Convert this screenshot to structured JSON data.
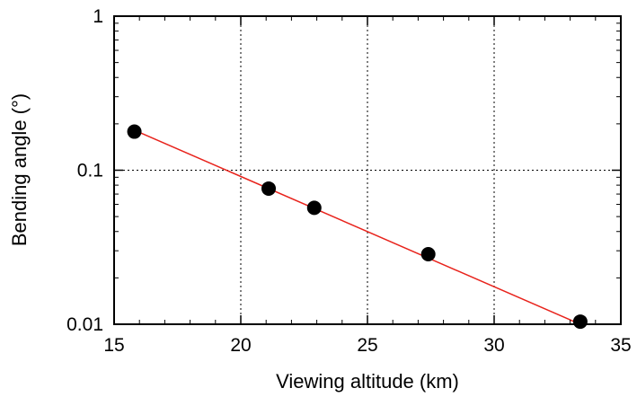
{
  "chart_data": {
    "type": "scatter",
    "xlabel": "Viewing altitude (km)",
    "ylabel": "Bending angle (°)",
    "xlim": [
      15,
      35
    ],
    "ylim": [
      0.01,
      1
    ],
    "yscale": "log",
    "grid": true,
    "x_ticks": [
      15,
      20,
      25,
      30,
      35
    ],
    "x_tick_labels": [
      "15",
      "20",
      "25",
      "30",
      "35"
    ],
    "y_ticks": [
      0.01,
      0.1,
      1
    ],
    "y_tick_labels": [
      "0.01",
      "0.1",
      "1"
    ],
    "points": [
      {
        "x": 15.8,
        "y": 0.178
      },
      {
        "x": 21.1,
        "y": 0.076
      },
      {
        "x": 22.9,
        "y": 0.057
      },
      {
        "x": 27.4,
        "y": 0.0285
      },
      {
        "x": 33.4,
        "y": 0.0104
      }
    ],
    "fit_line": {
      "color": "#e8231c",
      "points": [
        {
          "x": 15.8,
          "y": 0.182
        },
        {
          "x": 33.4,
          "y": 0.01
        }
      ]
    },
    "marker_color": "#000000"
  }
}
